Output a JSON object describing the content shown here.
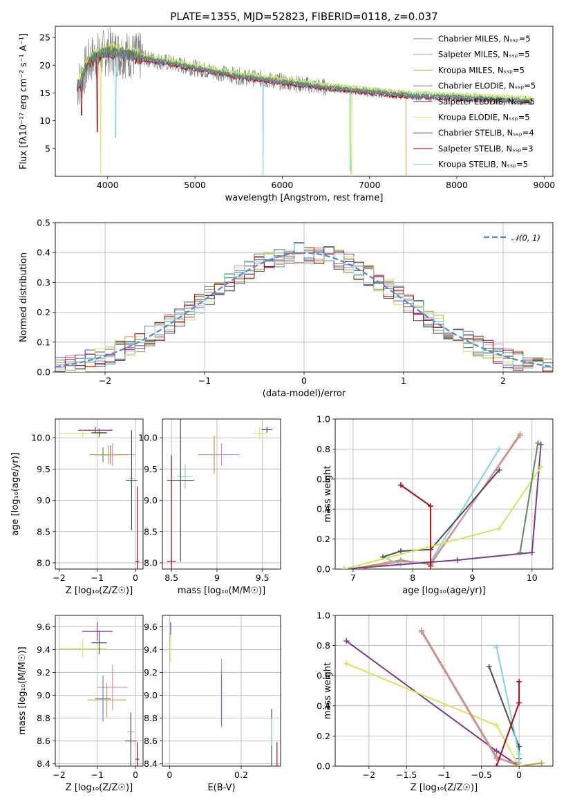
{
  "figure_title": "PLATE=1355, MJD=52823, FIBERID=0118, z=0.037",
  "colors": [
    "#6a7bc4",
    "#d68ab6",
    "#c19a3f",
    "#5e8a58",
    "#7a3a8a",
    "#d0e85a",
    "#4d4d4d",
    "#a30f12",
    "#7fd3dc"
  ],
  "chart_data": [
    {
      "type": "line",
      "panel": "spectrum",
      "xlabel": "wavelength [Angstrom, rest frame]",
      "ylabel": "Flux [fλ10⁻¹⁷ erg cm⁻² s⁻¹ A⁻¹]",
      "xlim": [
        3400,
        9100
      ],
      "ylim": [
        0,
        27
      ],
      "xticks": [
        4000,
        5000,
        6000,
        7000,
        8000,
        9000
      ],
      "yticks": [
        5,
        10,
        15,
        20,
        25
      ],
      "legend_position": "top-right",
      "legend": [
        "Chabrier MILES, Nₛₛₚ=5",
        "Salpeter MILES, Nₛₛₚ=5",
        "Kroupa MILES, Nₛₛₚ=5",
        "Chabrier ELODIE, Nₛₛₚ=5",
        "Salpeter ELODIE, Nₛₛₚ=5",
        "Kroupa ELODIE, Nₛₛₚ=5",
        "Chabrier STELIB, Nₛₛₚ=4",
        "Salpeter STELIB, Nₛₛₚ=3",
        "Kroupa STELIB, Nₛₛₚ=5"
      ],
      "data_trend": {
        "x": [
          3650,
          3800,
          4000,
          4200,
          4500,
          5000,
          5500,
          6000,
          6500,
          7000,
          7500,
          8000,
          8500,
          8850
        ],
        "y": [
          16,
          21,
          22.5,
          22,
          21,
          19.5,
          18,
          17,
          16,
          15.2,
          14.5,
          14.2,
          13.8,
          13.5
        ]
      }
    },
    {
      "type": "line",
      "panel": "residual-histogram",
      "xlabel": "(data-model)/error",
      "ylabel": "Normed distribution",
      "xlim": [
        -2.5,
        2.5
      ],
      "ylim": [
        0,
        0.5
      ],
      "xticks": [
        -2,
        -1,
        0,
        1,
        2
      ],
      "yticks": [
        0.0,
        0.1,
        0.2,
        0.3,
        0.4,
        0.5
      ],
      "legend": [
        "𝒩(0, 1)"
      ],
      "legend_position": "top-right",
      "bin_width": 0.1
    },
    {
      "type": "scatter",
      "panel": "age-vs-Z",
      "xlabel": "Z [log₁₀(Z/Z☉)]",
      "ylabel": "age  [log₁₀(age/yr)]",
      "xlim": [
        -2.1,
        0.2
      ],
      "ylim": [
        7.9,
        10.3
      ],
      "xticks": [
        -2,
        -1,
        0
      ],
      "yticks": [
        8.0,
        8.5,
        9.0,
        9.5,
        10.0
      ],
      "points": [
        {
          "x": -1.05,
          "y": 10.12,
          "xerr": 0.45,
          "yerr": 0.05,
          "c": 4
        },
        {
          "x": -1.38,
          "y": 10.07,
          "xerr": 0.62,
          "yerr": 0.05,
          "c": 5
        },
        {
          "x": -0.95,
          "y": 10.08,
          "xerr": 0.2,
          "yerr": 0.07,
          "c": 6
        },
        {
          "x": -0.65,
          "y": 9.73,
          "xerr": 0.4,
          "yerr": 0.15,
          "c": 0
        },
        {
          "x": -0.85,
          "y": 9.73,
          "xerr": 0.2,
          "yerr": 0.12,
          "c": 3
        },
        {
          "x": -0.6,
          "y": 9.73,
          "xerr": 0.6,
          "yerr": 0.18,
          "c": 1
        },
        {
          "x": -0.7,
          "y": 9.73,
          "xerr": 0.5,
          "yerr": 0.15,
          "c": 2
        },
        {
          "x": -0.1,
          "y": 9.35,
          "xerr": 0.1,
          "yerr": 0.15,
          "c": 8
        },
        {
          "x": -0.1,
          "y": 9.32,
          "xerr": 0.15,
          "yerr": 0.8,
          "c": 6
        },
        {
          "x": 0.05,
          "y": 8.02,
          "xerr": 0.05,
          "yerr": 1.2,
          "c": 7
        }
      ]
    },
    {
      "type": "scatter",
      "panel": "age-vs-mass",
      "xlabel": "mass [log₁₀(M/M☉)]",
      "ylabel": "",
      "xlim": [
        8.4,
        9.7
      ],
      "ylim": [
        7.9,
        10.3
      ],
      "xticks": [
        8.5,
        9.0,
        9.5
      ],
      "yticks": [
        8.0,
        8.5,
        9.0,
        9.5,
        10.0
      ],
      "points": [
        {
          "x": 9.55,
          "y": 10.13,
          "xerr": 0.06,
          "yerr": 0.05,
          "c": 4
        },
        {
          "x": 9.47,
          "y": 10.07,
          "xerr": 0.08,
          "yerr": 0.1,
          "c": 5
        },
        {
          "x": 8.97,
          "y": 9.73,
          "xerr": 0.18,
          "yerr": 0.3,
          "c": 2
        },
        {
          "x": 9.05,
          "y": 9.73,
          "xerr": 0.2,
          "yerr": 0.18,
          "c": 1
        },
        {
          "x": 8.65,
          "y": 9.38,
          "xerr": 0.08,
          "yerr": 0.2,
          "c": 8
        },
        {
          "x": 8.6,
          "y": 9.32,
          "xerr": 0.15,
          "yerr": 1.3,
          "c": 6
        },
        {
          "x": 8.5,
          "y": 8.02,
          "xerr": 0.05,
          "yerr": 1.7,
          "c": 7
        }
      ]
    },
    {
      "type": "line",
      "panel": "mass-weight-vs-age",
      "xlabel": "age  [log₁₀(age/yr)]",
      "ylabel": "mass weight",
      "xlim": [
        6.7,
        10.35
      ],
      "ylim": [
        0,
        1.0
      ],
      "xticks": [
        7,
        8,
        9,
        10
      ],
      "yticks": [
        0.0,
        0.2,
        0.4,
        0.6,
        0.8,
        1.0
      ],
      "series": [
        {
          "x": [
            7.1,
            7.8,
            8.3,
            9.8
          ],
          "y": [
            0.01,
            0.06,
            0.03,
            0.9
          ],
          "c": 2
        },
        {
          "x": [
            7.1,
            7.8,
            8.3,
            9.8
          ],
          "y": [
            0.0,
            0.05,
            0.04,
            0.89
          ],
          "c": 1
        },
        {
          "x": [
            7.5,
            7.8,
            8.3,
            9.45
          ],
          "y": [
            0.08,
            0.03,
            0.05,
            0.8
          ],
          "c": 8
        },
        {
          "x": [
            7.5,
            7.8,
            8.3,
            9.45
          ],
          "y": [
            0.08,
            0.12,
            0.13,
            0.66
          ],
          "c": 6
        },
        {
          "x": [
            6.85,
            8.75,
            10.0,
            10.15
          ],
          "y": [
            0.0,
            0.06,
            0.11,
            0.83
          ],
          "c": 4
        },
        {
          "x": [
            6.85,
            9.45,
            10.15
          ],
          "y": [
            0.0,
            0.27,
            0.68
          ],
          "c": 5
        },
        {
          "x": [
            7.8,
            8.3,
            8.3
          ],
          "y": [
            0.56,
            0.42,
            0.02
          ],
          "c": 7
        },
        {
          "x": [
            9.8,
            10.1
          ],
          "y": [
            0.11,
            0.84
          ],
          "c": 3
        }
      ]
    },
    {
      "type": "scatter",
      "panel": "mass-vs-Z",
      "xlabel": "Z [log₁₀(Z/Z☉)]",
      "ylabel": "mass [log₁₀(M/M☉)]",
      "xlim": [
        -2.1,
        0.2
      ],
      "ylim": [
        8.38,
        9.7
      ],
      "xticks": [
        -2,
        -1,
        0
      ],
      "yticks": [
        8.4,
        8.6,
        8.8,
        9.0,
        9.2,
        9.4,
        9.6
      ],
      "points": [
        {
          "x": -1.0,
          "y": 9.56,
          "xerr": 0.4,
          "yerr": 0.08,
          "c": 4
        },
        {
          "x": -1.38,
          "y": 9.41,
          "xerr": 0.62,
          "yerr": 0.08,
          "c": 5
        },
        {
          "x": -0.95,
          "y": 9.46,
          "xerr": 0.2,
          "yerr": 0.1,
          "c": 6
        },
        {
          "x": -0.6,
          "y": 9.07,
          "xerr": 0.4,
          "yerr": 0.2,
          "c": 1
        },
        {
          "x": -0.85,
          "y": 8.97,
          "xerr": 0.2,
          "yerr": 0.2,
          "c": 0
        },
        {
          "x": -0.75,
          "y": 8.96,
          "xerr": 0.5,
          "yerr": 0.15,
          "c": 2
        },
        {
          "x": -0.12,
          "y": 8.68,
          "xerr": 0.1,
          "yerr": 0.1,
          "c": 8
        },
        {
          "x": -0.12,
          "y": 8.6,
          "xerr": 0.15,
          "yerr": 0.25,
          "c": 6
        },
        {
          "x": 0.05,
          "y": 8.44,
          "xerr": 0.05,
          "yerr": 0.15,
          "c": 7
        }
      ]
    },
    {
      "type": "scatter",
      "panel": "mass-vs-EBV",
      "xlabel": "E(B-V)",
      "ylabel": "",
      "xlim": [
        -0.02,
        0.31
      ],
      "ylim": [
        8.38,
        9.7
      ],
      "xticks": [
        0.0,
        0.2
      ],
      "yticks": [
        8.4,
        8.6,
        8.8,
        9.0,
        9.2,
        9.4,
        9.6
      ],
      "points": [
        {
          "x": 0.003,
          "y": 9.56,
          "xerr": 0.0,
          "yerr": 0.08,
          "c": 4
        },
        {
          "x": 0.003,
          "y": 9.41,
          "xerr": 0.0,
          "yerr": 0.12,
          "c": 5
        },
        {
          "x": 0.145,
          "y": 9.07,
          "xerr": 0.0,
          "yerr": 0.25,
          "c": 1
        },
        {
          "x": 0.145,
          "y": 8.97,
          "xerr": 0.0,
          "yerr": 0.25,
          "c": 2
        },
        {
          "x": 0.145,
          "y": 8.96,
          "xerr": 0.0,
          "yerr": 0.22,
          "c": 0
        },
        {
          "x": 0.285,
          "y": 8.6,
          "xerr": 0.0,
          "yerr": 0.28,
          "c": 6
        },
        {
          "x": 0.285,
          "y": 8.68,
          "xerr": 0.0,
          "yerr": 0.12,
          "c": 8
        },
        {
          "x": 0.3,
          "y": 8.44,
          "xerr": 0.0,
          "yerr": 0.15,
          "c": 7
        }
      ]
    },
    {
      "type": "line",
      "panel": "mass-weight-vs-Z",
      "xlabel": "Z [log₁₀(Z/Z☉)]",
      "ylabel": "mass weight",
      "xlim": [
        -2.45,
        0.45
      ],
      "ylim": [
        0,
        1.0
      ],
      "xticks": [
        -2.0,
        -1.5,
        -1.0,
        -0.5,
        0.0
      ],
      "yticks": [
        0.0,
        0.2,
        0.4,
        0.6,
        0.8,
        1.0
      ],
      "series": [
        {
          "x": [
            -2.3,
            -0.3,
            0.0
          ],
          "y": [
            0.83,
            0.1,
            0.0
          ],
          "c": 4
        },
        {
          "x": [
            -2.3,
            -0.3,
            0.0
          ],
          "y": [
            0.68,
            0.27,
            0.0
          ],
          "c": 5
        },
        {
          "x": [
            -1.3,
            -0.3,
            0.0,
            0.3
          ],
          "y": [
            0.9,
            0.06,
            0.0,
            0.02
          ],
          "c": 2
        },
        {
          "x": [
            -1.3,
            -0.3,
            0.0
          ],
          "y": [
            0.89,
            0.05,
            0.02
          ],
          "c": 1
        },
        {
          "x": [
            -0.4,
            0.0,
            0.0
          ],
          "y": [
            0.66,
            0.13,
            0.05
          ],
          "c": 6
        },
        {
          "x": [
            -0.3,
            0.0,
            0.0
          ],
          "y": [
            0.79,
            0.08,
            0.02
          ],
          "c": 8
        },
        {
          "x": [
            0.0,
            0.0,
            -0.3
          ],
          "y": [
            0.56,
            0.42,
            0.0
          ],
          "c": 7
        }
      ]
    }
  ]
}
